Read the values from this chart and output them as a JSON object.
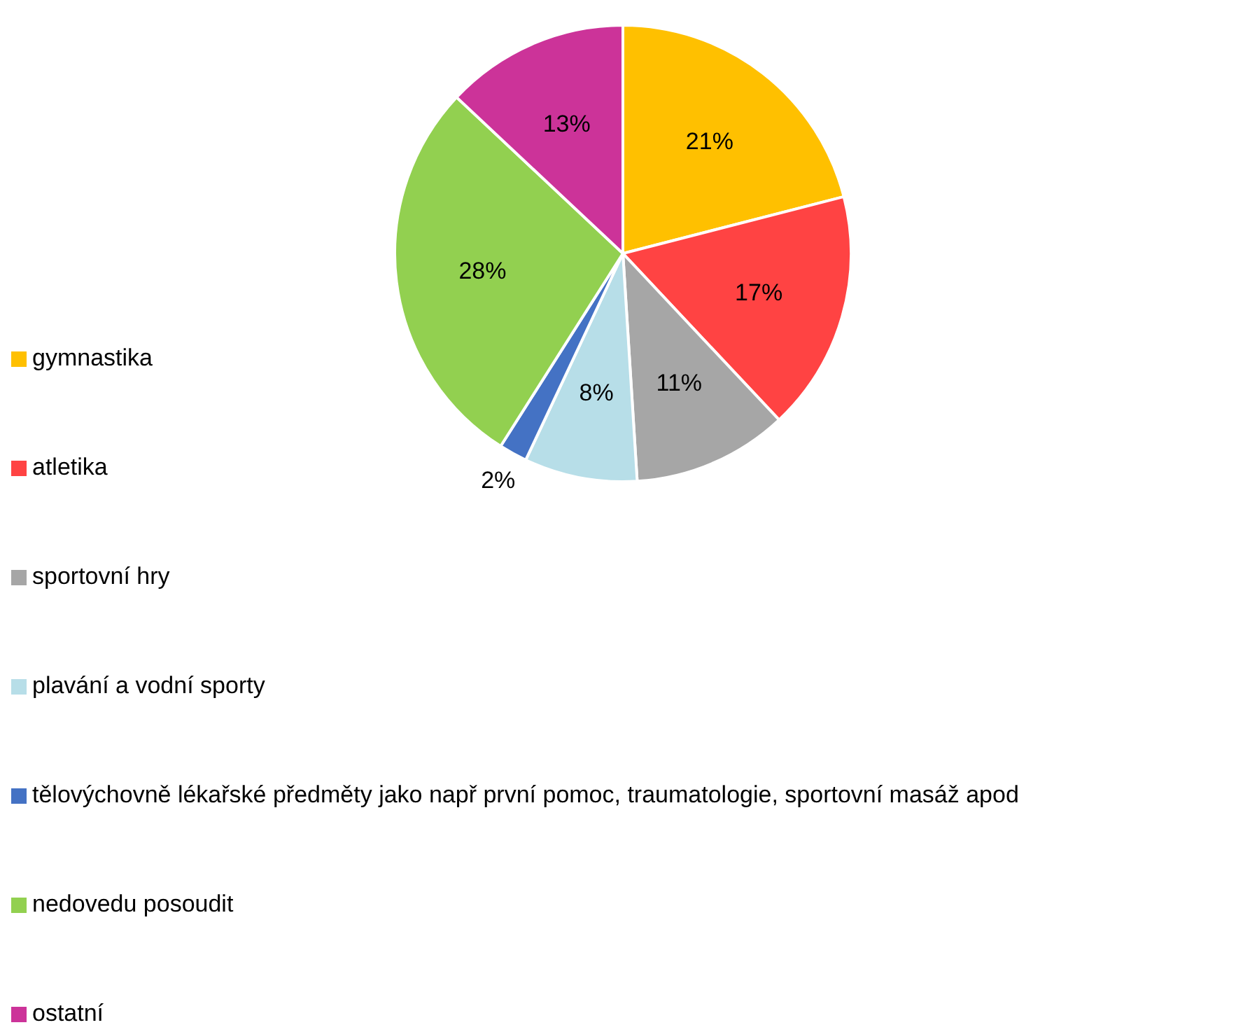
{
  "chart_data": {
    "type": "pie",
    "categories": [
      "gymnastika",
      "atletika",
      "sportovní hry",
      "plavání a vodní sporty",
      "tělovýchovně lékařské předměty jako např první pomoc, traumatologie, sportovní masáž apod",
      "nedovedu posoudit",
      "ostatní"
    ],
    "values": [
      21,
      17,
      11,
      8,
      2,
      28,
      13
    ],
    "value_labels": [
      "21%",
      "17%",
      "11%",
      "8%",
      "2%",
      "28%",
      "13%"
    ],
    "colors": [
      "#ffc000",
      "#ff4343",
      "#a6a6a6",
      "#b7dee8",
      "#4472c4",
      "#92d050",
      "#cc3399"
    ],
    "legend": "bottom left"
  }
}
